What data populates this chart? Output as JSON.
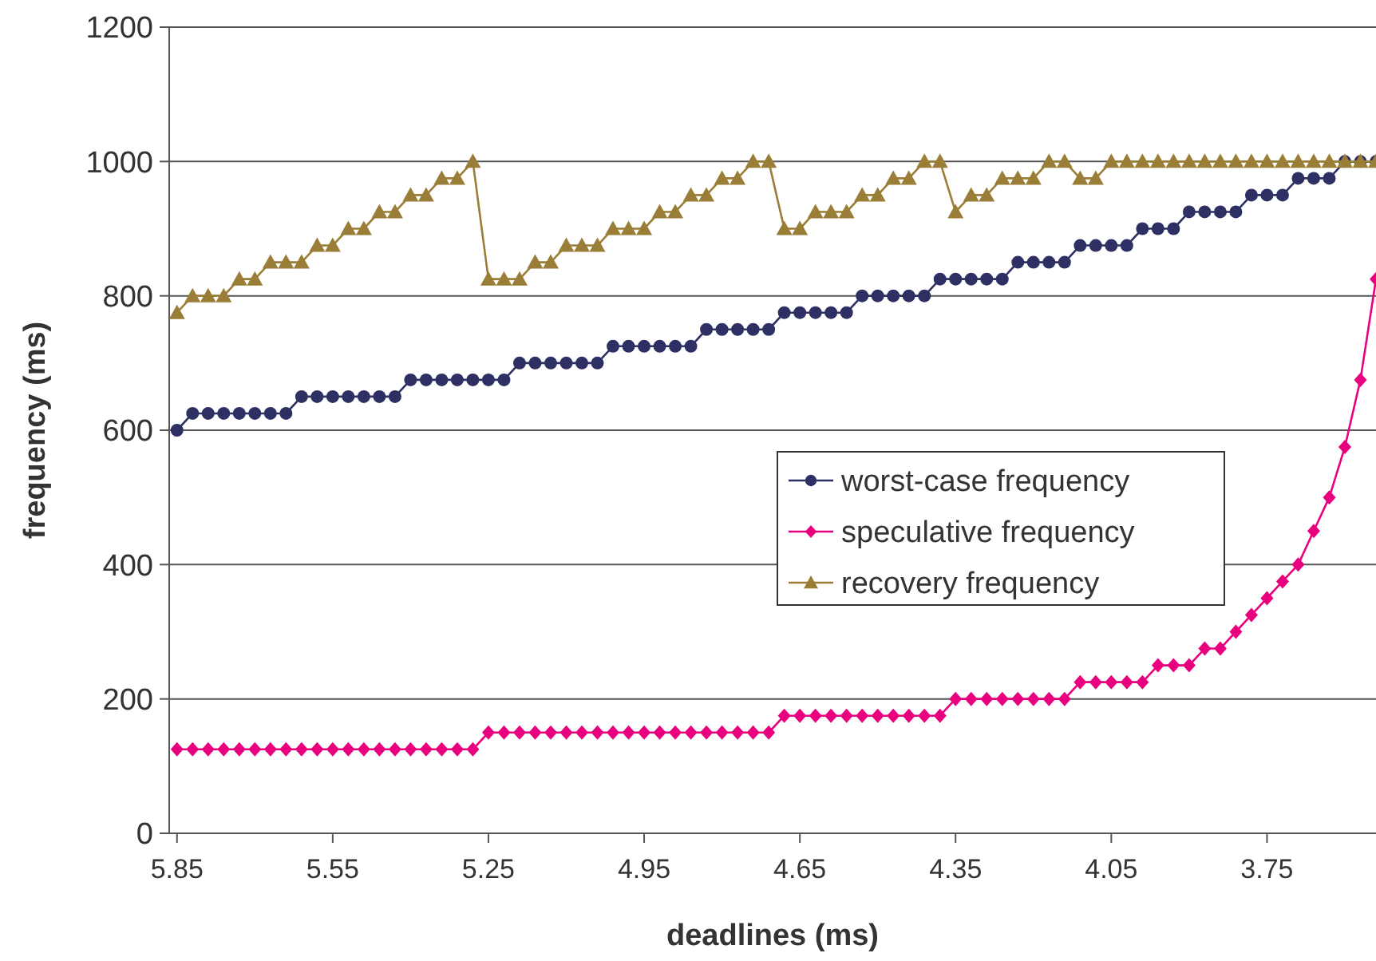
{
  "chart_data": {
    "type": "line",
    "xlabel": "deadlines (ms)",
    "ylabel": "frequency (ms)",
    "x": [
      5.85,
      5.82,
      5.79,
      5.76,
      5.73,
      5.7,
      5.67,
      5.64,
      5.61,
      5.58,
      5.55,
      5.52,
      5.49,
      5.46,
      5.43,
      5.4,
      5.37,
      5.34,
      5.31,
      5.28,
      5.25,
      5.22,
      5.19,
      5.16,
      5.13,
      5.1,
      5.07,
      5.04,
      5.01,
      4.98,
      4.95,
      4.92,
      4.89,
      4.86,
      4.83,
      4.8,
      4.77,
      4.74,
      4.71,
      4.68,
      4.65,
      4.62,
      4.59,
      4.56,
      4.53,
      4.5,
      4.47,
      4.44,
      4.41,
      4.38,
      4.35,
      4.32,
      4.29,
      4.26,
      4.23,
      4.2,
      4.17,
      4.14,
      4.11,
      4.08,
      4.05,
      4.02,
      3.99,
      3.96,
      3.93,
      3.9,
      3.87,
      3.84,
      3.81,
      3.78,
      3.75,
      3.72,
      3.69,
      3.66,
      3.63,
      3.6,
      3.57,
      3.54
    ],
    "series": [
      {
        "name": "worst-case frequency",
        "color": "#2e3064",
        "marker": "circle",
        "values": [
          600,
          625,
          625,
          625,
          625,
          625,
          625,
          625,
          650,
          650,
          650,
          650,
          650,
          650,
          650,
          675,
          675,
          675,
          675,
          675,
          675,
          675,
          700,
          700,
          700,
          700,
          700,
          700,
          725,
          725,
          725,
          725,
          725,
          725,
          750,
          750,
          750,
          750,
          750,
          775,
          775,
          775,
          775,
          775,
          800,
          800,
          800,
          800,
          800,
          825,
          825,
          825,
          825,
          825,
          850,
          850,
          850,
          850,
          875,
          875,
          875,
          875,
          900,
          900,
          900,
          925,
          925,
          925,
          925,
          950,
          950,
          950,
          975,
          975,
          975,
          1000,
          1000,
          1000
        ]
      },
      {
        "name": "speculative frequency",
        "color": "#e8007f",
        "marker": "diamond",
        "values": [
          125,
          125,
          125,
          125,
          125,
          125,
          125,
          125,
          125,
          125,
          125,
          125,
          125,
          125,
          125,
          125,
          125,
          125,
          125,
          125,
          150,
          150,
          150,
          150,
          150,
          150,
          150,
          150,
          150,
          150,
          150,
          150,
          150,
          150,
          150,
          150,
          150,
          150,
          150,
          175,
          175,
          175,
          175,
          175,
          175,
          175,
          175,
          175,
          175,
          175,
          200,
          200,
          200,
          200,
          200,
          200,
          200,
          200,
          225,
          225,
          225,
          225,
          225,
          250,
          250,
          250,
          275,
          275,
          300,
          325,
          350,
          375,
          400,
          450,
          500,
          575,
          675,
          825
        ]
      },
      {
        "name": "recovery frequency",
        "color": "#9a7d36",
        "marker": "triangle",
        "values": [
          775,
          800,
          800,
          800,
          825,
          825,
          850,
          850,
          850,
          875,
          875,
          900,
          900,
          925,
          925,
          950,
          950,
          975,
          975,
          1000,
          825,
          825,
          825,
          850,
          850,
          875,
          875,
          875,
          900,
          900,
          900,
          925,
          925,
          950,
          950,
          975,
          975,
          1000,
          1000,
          900,
          900,
          925,
          925,
          925,
          950,
          950,
          975,
          975,
          1000,
          1000,
          925,
          950,
          950,
          975,
          975,
          975,
          1000,
          1000,
          975,
          975,
          1000,
          1000,
          1000,
          1000,
          1000,
          1000,
          1000,
          1000,
          1000,
          1000,
          1000,
          1000,
          1000,
          1000,
          1000,
          1000,
          1000,
          1000
        ]
      }
    ],
    "xlim": [
      5.865,
      3.54
    ],
    "xticks": [
      5.85,
      5.55,
      5.25,
      4.95,
      4.65,
      4.35,
      4.05,
      3.75
    ],
    "ylim": [
      0,
      1200
    ],
    "yticks": [
      0,
      200,
      400,
      600,
      800,
      1000,
      1200
    ],
    "grid": "y",
    "legend": "right",
    "line_style": "solid"
  }
}
